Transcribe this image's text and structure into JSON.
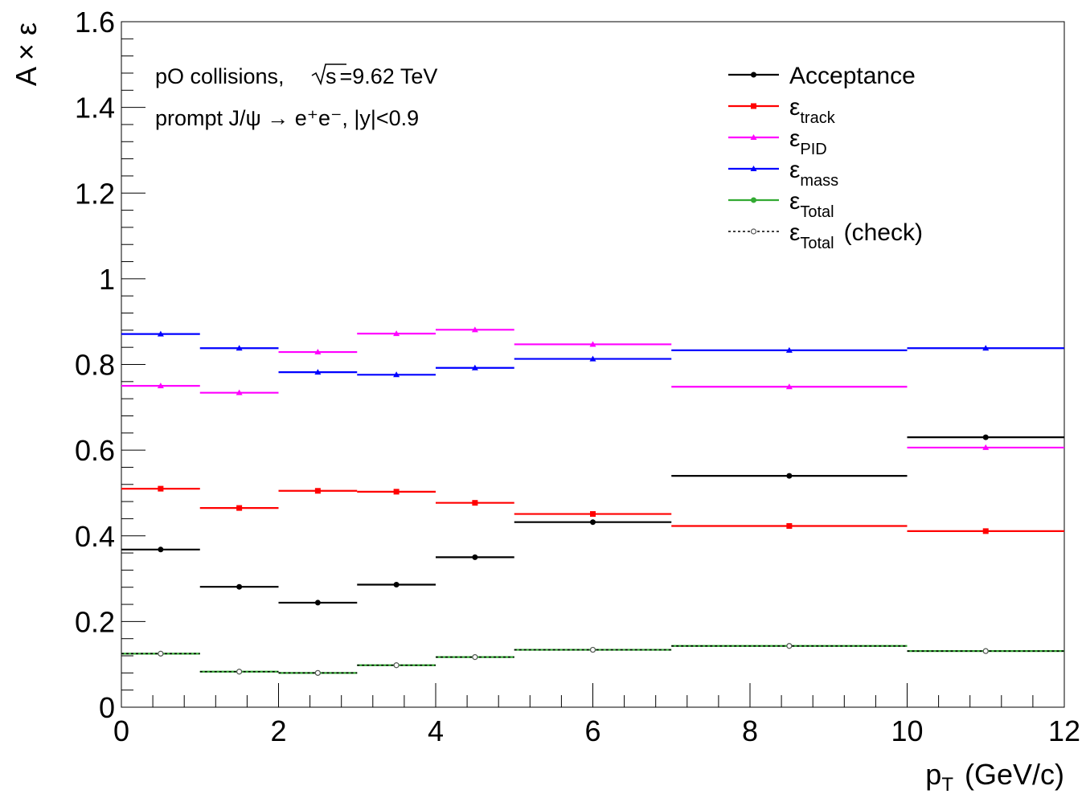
{
  "chart_data": {
    "type": "scatter",
    "xlabel": "p",
    "xlabel_sub": "T",
    "xlabel_unit": "(GeV/c)",
    "ylabel": "A × ε",
    "xlim": [
      0,
      12
    ],
    "ylim": [
      0,
      1.6
    ],
    "x_ticks": [
      "0",
      "2",
      "4",
      "6",
      "8",
      "10",
      "12"
    ],
    "y_ticks": [
      "0",
      "0.2",
      "0.4",
      "0.6",
      "0.8",
      "1",
      "1.2",
      "1.4",
      "1.6"
    ],
    "grid": false,
    "legend_position": "top-right",
    "annotations": {
      "line1_pre": "pO collisions,",
      "line1_sqrt": "s",
      "line1_post": "=9.62 TeV",
      "line2": "prompt J/ψ → e⁺e⁻, |y|<0.9"
    },
    "bins": [
      [
        0,
        1
      ],
      [
        1,
        2
      ],
      [
        2,
        3
      ],
      [
        3,
        4
      ],
      [
        4,
        5
      ],
      [
        5,
        7
      ],
      [
        7,
        10
      ],
      [
        10,
        12
      ]
    ],
    "x": [
      0.5,
      1.5,
      2.5,
      3.5,
      4.5,
      6,
      8.5,
      11
    ],
    "series": [
      {
        "name": "Acceptance",
        "sym": "ε",
        "sub": "",
        "suffix": "",
        "color": "#000000",
        "marker": "circle",
        "style": "solid",
        "values": [
          0.368,
          0.281,
          0.244,
          0.286,
          0.35,
          0.432,
          0.54,
          0.63
        ]
      },
      {
        "name": "track",
        "sym": "ε",
        "sub": "track",
        "suffix": "",
        "color": "#ff0000",
        "marker": "square",
        "style": "solid",
        "values": [
          0.51,
          0.465,
          0.505,
          0.503,
          0.477,
          0.451,
          0.423,
          0.411
        ]
      },
      {
        "name": "PID",
        "sym": "ε",
        "sub": "PID",
        "suffix": "",
        "color": "#ff00ff",
        "marker": "triangle",
        "style": "solid",
        "values": [
          0.75,
          0.734,
          0.829,
          0.872,
          0.881,
          0.847,
          0.748,
          0.606
        ]
      },
      {
        "name": "mass",
        "sym": "ε",
        "sub": "mass",
        "suffix": "",
        "color": "#0000ff",
        "marker": "triangle",
        "style": "solid",
        "values": [
          0.871,
          0.838,
          0.782,
          0.776,
          0.792,
          0.813,
          0.833,
          0.838
        ]
      },
      {
        "name": "Total",
        "sym": "ε",
        "sub": "Total",
        "suffix": "",
        "color": "#33aa33",
        "marker": "circle",
        "style": "solid",
        "values": [
          0.125,
          0.083,
          0.08,
          0.098,
          0.117,
          0.134,
          0.143,
          0.131
        ]
      },
      {
        "name": "Total (check)",
        "sym": "ε",
        "sub": "Total",
        "suffix": "(check)",
        "color": "#000000",
        "marker": "open-circle",
        "style": "dashed",
        "values": [
          0.125,
          0.083,
          0.08,
          0.098,
          0.117,
          0.134,
          0.143,
          0.131
        ]
      }
    ]
  }
}
